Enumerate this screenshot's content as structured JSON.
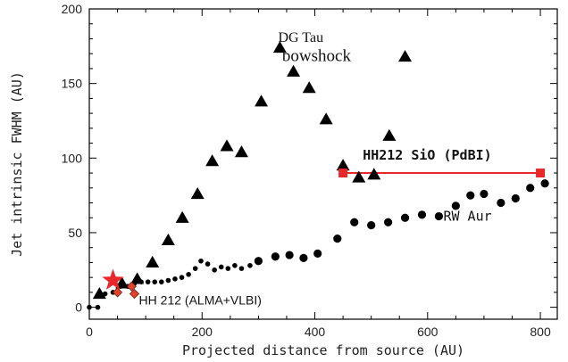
{
  "chart_data": {
    "type": "scatter",
    "xlabel": "Projected distance from source (AU)",
    "ylabel": "Jet intrinsic FWHM (AU)",
    "xlim": [
      0,
      830
    ],
    "ylim": [
      -8,
      200
    ],
    "xticks": [
      0,
      200,
      400,
      600,
      800
    ],
    "yticks": [
      0,
      50,
      100,
      150,
      200
    ],
    "grid": false,
    "series": [
      {
        "name": "DG Tau",
        "marker": "triangle",
        "color": "#000000",
        "points": [
          [
            18,
            9
          ],
          [
            58,
            16
          ],
          [
            85,
            19
          ],
          [
            112,
            30
          ],
          [
            140,
            45
          ],
          [
            165,
            60
          ],
          [
            192,
            76
          ],
          [
            218,
            98
          ],
          [
            244,
            108
          ],
          [
            270,
            104
          ],
          [
            305,
            138
          ],
          [
            338,
            174
          ],
          [
            362,
            158
          ],
          [
            390,
            147
          ],
          [
            420,
            126
          ],
          [
            450,
            95
          ],
          [
            478,
            87
          ],
          [
            505,
            89
          ],
          [
            532,
            115
          ],
          [
            560,
            168
          ]
        ]
      },
      {
        "name": "RW Aur",
        "marker": "circle",
        "color": "#000000",
        "points": [
          [
            0,
            0
          ],
          [
            15,
            0
          ],
          [
            28,
            9
          ],
          [
            42,
            10
          ],
          [
            55,
            14
          ],
          [
            68,
            14
          ],
          [
            80,
            16
          ],
          [
            92,
            17
          ],
          [
            104,
            17
          ],
          [
            116,
            17
          ],
          [
            128,
            17
          ],
          [
            140,
            18
          ],
          [
            152,
            19
          ],
          [
            164,
            20
          ],
          [
            176,
            22
          ],
          [
            188,
            26
          ],
          [
            198,
            31
          ],
          [
            210,
            29
          ],
          [
            222,
            25
          ],
          [
            234,
            27
          ],
          [
            246,
            26
          ],
          [
            258,
            28
          ],
          [
            270,
            26
          ],
          [
            285,
            28
          ],
          [
            300,
            31
          ],
          [
            330,
            34
          ],
          [
            355,
            35
          ],
          [
            380,
            33
          ],
          [
            405,
            36
          ],
          [
            440,
            46
          ],
          [
            470,
            57
          ],
          [
            500,
            55
          ],
          [
            530,
            57
          ],
          [
            560,
            60
          ],
          [
            590,
            62
          ],
          [
            620,
            61
          ],
          [
            650,
            68
          ],
          [
            676,
            75
          ],
          [
            700,
            76
          ],
          [
            730,
            70
          ],
          [
            756,
            73
          ],
          [
            782,
            80
          ],
          [
            808,
            83
          ]
        ]
      },
      {
        "name": "HH212 SiO (PdBI)",
        "marker": "square",
        "color": "#e8282b",
        "points": [
          [
            450,
            90
          ],
          [
            800,
            90
          ]
        ]
      },
      {
        "name": "HH 212 (ALMA+VLBI)",
        "marker": "diamond",
        "color": "#e0442a",
        "points": [
          [
            50,
            10
          ],
          [
            80,
            9
          ],
          [
            75,
            14
          ]
        ]
      },
      {
        "name": "HH 212 (ALMA+VLBI) star",
        "marker": "star",
        "color": "#e8282b",
        "points": [
          [
            42,
            18
          ]
        ]
      }
    ],
    "annotations": [
      {
        "text": "DG Tau",
        "x": 335,
        "y": 178
      },
      {
        "text": "bowshock",
        "x": 342,
        "y": 165
      },
      {
        "text": "HH212 SiO (PdBI)",
        "x": 485,
        "y": 99
      },
      {
        "text": "RW Aur",
        "x": 628,
        "y": 58
      },
      {
        "text": "HH 212 (ALMA+VLBI)",
        "x": 88,
        "y": 2
      }
    ]
  }
}
